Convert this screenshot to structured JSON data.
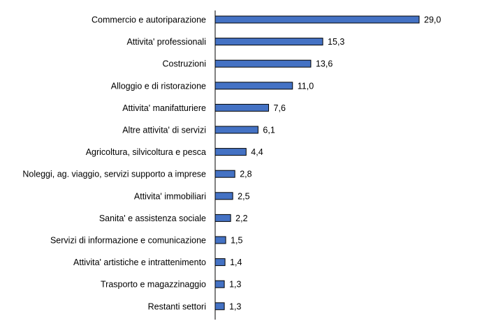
{
  "chart_data": {
    "type": "bar",
    "orientation": "horizontal",
    "categories": [
      "Commercio e autoriparazione",
      "Attivita' professionali",
      "Costruzioni",
      "Alloggio e di ristorazione",
      "Attivita' manifatturiere",
      "Altre attivita' di servizi",
      "Agricoltura, silvicoltura e pesca",
      "Noleggi, ag. viaggio, servizi supporto a imprese",
      "Attivita' immobiliari",
      "Sanita' e assistenza sociale",
      "Servizi di informazione e comunicazione",
      "Attivita' artistiche e intrattenimento",
      "Trasporto e magazzinaggio",
      "Restanti settori"
    ],
    "values": [
      29.0,
      15.3,
      13.6,
      11.0,
      7.6,
      6.1,
      4.4,
      2.8,
      2.5,
      2.2,
      1.5,
      1.4,
      1.3,
      1.3
    ],
    "value_labels": [
      "29,0",
      "15,3",
      "13,6",
      "11,0",
      "7,6",
      "6,1",
      "4,4",
      "2,8",
      "2,5",
      "2,2",
      "1,5",
      "1,4",
      "1,3",
      "1,3"
    ],
    "xlim": [
      0,
      29.0
    ],
    "grid": false,
    "legend": "none",
    "title": "",
    "xlabel": "",
    "ylabel": "",
    "bar_color": "#4472C4",
    "bar_outline_color": "#000000"
  }
}
